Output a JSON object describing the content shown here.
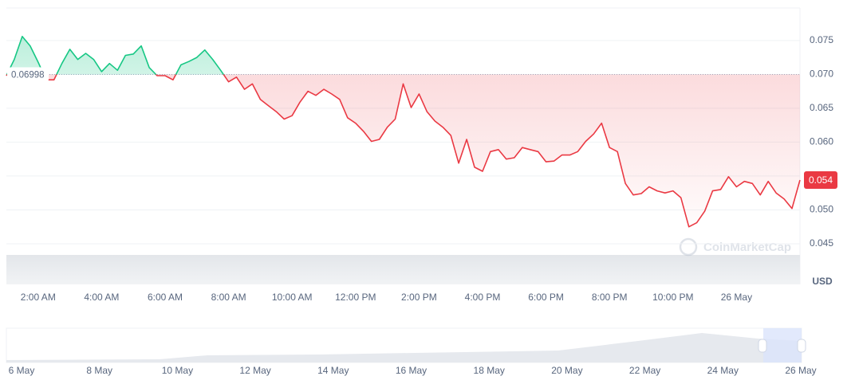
{
  "chart_data": {
    "type": "line",
    "categories": [
      null,
      null,
      null,
      null,
      "2:00 AM",
      null,
      null,
      null,
      null,
      null,
      null,
      null,
      "4:00 AM",
      null,
      null,
      null,
      null,
      null,
      null,
      null,
      "6:00 AM",
      null,
      null,
      null,
      null,
      null,
      null,
      null,
      "8:00 AM",
      null,
      null,
      null,
      null,
      null,
      null,
      null,
      "10:00 AM",
      null,
      null,
      null,
      null,
      null,
      null,
      null,
      "12:00 PM",
      null,
      null,
      null,
      null,
      null,
      null,
      null,
      "2:00 PM",
      null,
      null,
      null,
      null,
      null,
      null,
      null,
      "4:00 PM",
      null,
      null,
      null,
      null,
      null,
      null,
      null,
      "6:00 PM",
      null,
      null,
      null,
      null,
      null,
      null,
      null,
      "8:00 PM",
      null,
      null,
      null,
      null,
      null,
      null,
      null,
      "10:00 PM",
      null,
      null,
      null,
      null,
      null,
      null,
      null,
      "26 May",
      null,
      null,
      null,
      null,
      null,
      null,
      null,
      null
    ],
    "values": [
      0.0698,
      0.0722,
      0.0756,
      0.0742,
      0.0718,
      0.0692,
      0.0692,
      0.0716,
      0.0737,
      0.0722,
      0.0731,
      0.0722,
      0.0704,
      0.0716,
      0.0706,
      0.0728,
      0.073,
      0.0742,
      0.071,
      0.0698,
      0.0698,
      0.0692,
      0.0714,
      0.0719,
      0.0725,
      0.0736,
      0.0722,
      0.0706,
      0.0689,
      0.0696,
      0.0678,
      0.0686,
      0.0663,
      0.0654,
      0.0645,
      0.0634,
      0.0639,
      0.0659,
      0.0675,
      0.0669,
      0.0678,
      0.0671,
      0.0663,
      0.0636,
      0.0628,
      0.0616,
      0.0601,
      0.0604,
      0.0622,
      0.0634,
      0.0686,
      0.0651,
      0.0671,
      0.0645,
      0.0631,
      0.0622,
      0.061,
      0.0569,
      0.0604,
      0.0563,
      0.0557,
      0.0586,
      0.0589,
      0.0575,
      0.0577,
      0.0592,
      0.0589,
      0.0586,
      0.0571,
      0.0572,
      0.0581,
      0.0581,
      0.0586,
      0.0601,
      0.0612,
      0.0628,
      0.0592,
      0.0586,
      0.0539,
      0.0522,
      0.0524,
      0.0534,
      0.0528,
      0.0525,
      0.0528,
      0.0518,
      0.0475,
      0.0481,
      0.0498,
      0.0528,
      0.053,
      0.0549,
      0.0534,
      0.0542,
      0.0539,
      0.0522,
      0.0542,
      0.0525,
      0.0516,
      0.0502,
      0.0544
    ],
    "baseline": 0.06998,
    "current_label": "0.054",
    "up_color": "#16c784",
    "down_color": "#ea3943",
    "ylim": [
      0.039,
      0.0798
    ],
    "yticks": [
      {
        "value": 0.045,
        "label": "0.045"
      },
      {
        "value": 0.05,
        "label": "0.050"
      },
      {
        "value": 0.055,
        "label": "0.055"
      },
      {
        "value": 0.06,
        "label": "0.060"
      },
      {
        "value": 0.065,
        "label": "0.065"
      },
      {
        "value": 0.07,
        "label": "0.070"
      },
      {
        "value": 0.075,
        "label": "0.075"
      }
    ],
    "y_unit": "USD",
    "grid": true,
    "watermark": "CoinMarketCap",
    "navigator": {
      "labels": [
        "6 May",
        "8 May",
        "10 May",
        "12 May",
        "14 May",
        "16 May",
        "18 May",
        "20 May",
        "22 May",
        "24 May",
        "26 May"
      ]
    }
  }
}
